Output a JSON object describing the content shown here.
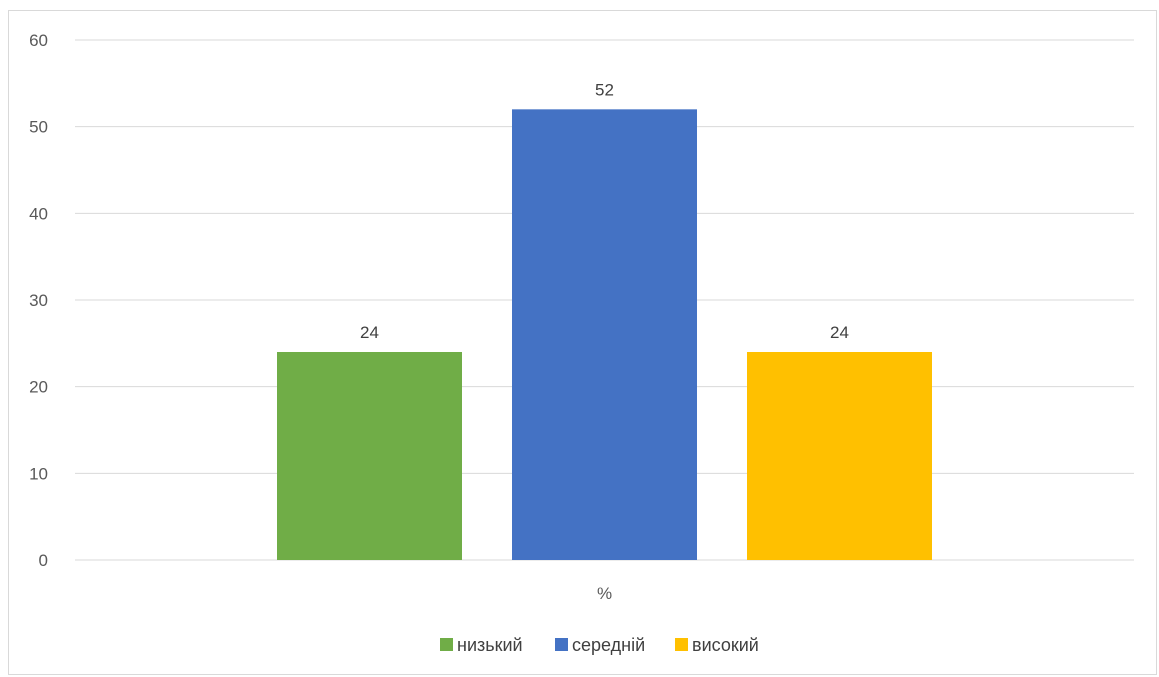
{
  "chart_data": {
    "type": "bar",
    "categories": [
      "%"
    ],
    "series": [
      {
        "name": "низький",
        "values": [
          24
        ],
        "color": "#70ad47"
      },
      {
        "name": "середній",
        "values": [
          52
        ],
        "color": "#4472c4"
      },
      {
        "name": "високий",
        "values": [
          24
        ],
        "color": "#ffc000"
      }
    ],
    "yticks": [
      "0",
      "10",
      "20",
      "30",
      "40",
      "50",
      "60"
    ],
    "ylim": [
      0,
      60
    ],
    "grid": true,
    "legend": "bottom",
    "data_labels": true
  }
}
